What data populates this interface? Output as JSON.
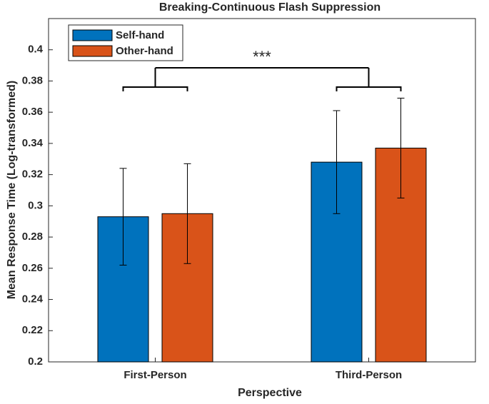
{
  "chart_data": {
    "type": "bar",
    "title": "Breaking-Continuous Flash Suppression",
    "x_label": "Perspective",
    "y_label": "Mean Response Time (Log-transformed)",
    "categories": [
      "First-Person",
      "Third-Person"
    ],
    "series": [
      {
        "name": "Self-hand",
        "color": "#0072BD",
        "values": [
          0.293,
          0.328
        ],
        "errors": [
          0.031,
          0.033
        ]
      },
      {
        "name": "Other-hand",
        "color": "#D95319",
        "values": [
          0.295,
          0.337
        ],
        "errors": [
          0.032,
          0.032
        ]
      }
    ],
    "ylim": [
      0.2,
      0.42
    ],
    "yticks": [
      0.2,
      0.22,
      0.24,
      0.26,
      0.28,
      0.3,
      0.32,
      0.34,
      0.36,
      0.38,
      0.4
    ],
    "annotation": "***",
    "legend": "upper-left"
  }
}
